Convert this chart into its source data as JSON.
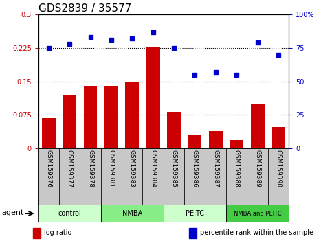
{
  "title": "GDS2839 / 35577",
  "samples": [
    "GSM159376",
    "GSM159377",
    "GSM159378",
    "GSM159381",
    "GSM159383",
    "GSM159384",
    "GSM159385",
    "GSM159386",
    "GSM159387",
    "GSM159388",
    "GSM159389",
    "GSM159390"
  ],
  "log_ratio": [
    0.068,
    0.118,
    0.138,
    0.138,
    0.148,
    0.228,
    0.082,
    0.03,
    0.038,
    0.018,
    0.098,
    0.048
  ],
  "percentile_rank": [
    75,
    78,
    83,
    81,
    82,
    87,
    75,
    55,
    57,
    55,
    79,
    70
  ],
  "bar_color": "#cc0000",
  "dot_color": "#0000cc",
  "ylim_left": [
    0,
    0.3
  ],
  "ylim_right": [
    0,
    100
  ],
  "yticks_left": [
    0,
    0.075,
    0.15,
    0.225,
    0.3
  ],
  "ytick_labels_left": [
    "0",
    "0.075",
    "0.15",
    "0.225",
    "0.3"
  ],
  "yticks_right": [
    0,
    25,
    50,
    75,
    100
  ],
  "ytick_labels_right": [
    "0",
    "25",
    "50",
    "75",
    "100%"
  ],
  "hlines": [
    0.075,
    0.15,
    0.225
  ],
  "groups": [
    {
      "label": "control",
      "start": 0,
      "end": 3,
      "color": "#ccffcc"
    },
    {
      "label": "NMBA",
      "start": 3,
      "end": 6,
      "color": "#88ee88"
    },
    {
      "label": "PEITC",
      "start": 6,
      "end": 9,
      "color": "#ccffcc"
    },
    {
      "label": "NMBA and PEITC",
      "start": 9,
      "end": 12,
      "color": "#44cc44"
    }
  ],
  "agent_label": "agent",
  "legend_items": [
    {
      "label": "log ratio",
      "color": "#cc0000"
    },
    {
      "label": "percentile rank within the sample",
      "color": "#0000cc"
    }
  ],
  "sample_bg_color": "#c8c8c8",
  "plot_bg": "#ffffff",
  "title_fontsize": 11,
  "axis_label_color_left": "#cc0000",
  "axis_label_color_right": "#0000cc"
}
